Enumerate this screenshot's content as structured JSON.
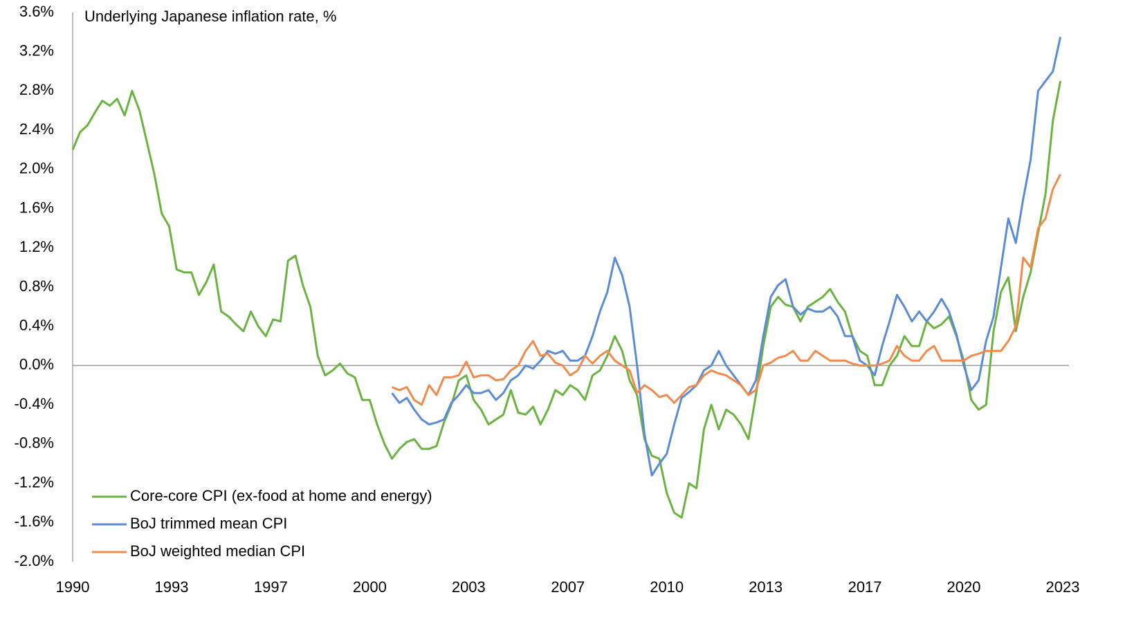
{
  "chart_data": {
    "type": "line",
    "title": "Underlying Japanese inflation rate, %",
    "x": [
      1990,
      1990.25,
      1990.5,
      1990.75,
      1991,
      1991.25,
      1991.5,
      1991.75,
      1992,
      1992.25,
      1992.5,
      1992.75,
      1993,
      1993.25,
      1993.5,
      1993.75,
      1994,
      1994.25,
      1994.5,
      1994.75,
      1995,
      1995.25,
      1995.5,
      1995.75,
      1996,
      1996.25,
      1996.5,
      1996.75,
      1997,
      1997.25,
      1997.5,
      1997.75,
      1998,
      1998.25,
      1998.5,
      1998.75,
      1999,
      1999.25,
      1999.5,
      1999.75,
      2000,
      2000.25,
      2000.5,
      2000.75,
      2001,
      2001.25,
      2001.5,
      2001.75,
      2002,
      2002.25,
      2002.5,
      2002.75,
      2003,
      2003.25,
      2003.5,
      2003.75,
      2004,
      2004.25,
      2004.5,
      2004.75,
      2005,
      2005.25,
      2005.5,
      2005.75,
      2006,
      2006.25,
      2006.5,
      2006.75,
      2007,
      2007.25,
      2007.5,
      2007.75,
      2008,
      2008.25,
      2008.5,
      2008.75,
      2009,
      2009.25,
      2009.5,
      2009.75,
      2010,
      2010.25,
      2010.5,
      2010.75,
      2011,
      2011.25,
      2011.5,
      2011.75,
      2012,
      2012.25,
      2012.5,
      2012.75,
      2013,
      2013.25,
      2013.5,
      2013.75,
      2014,
      2014.25,
      2014.5,
      2014.75,
      2015,
      2015.25,
      2015.5,
      2015.75,
      2016,
      2016.25,
      2016.5,
      2016.75,
      2017,
      2017.25,
      2017.5,
      2017.75,
      2018,
      2018.25,
      2018.5,
      2018.75,
      2019,
      2019.25,
      2019.5,
      2019.75,
      2020,
      2020.25,
      2020.5,
      2020.75,
      2021,
      2021.25,
      2021.5,
      2021.75,
      2022,
      2022.25,
      2022.5,
      2022.75,
      2023,
      2023.25
    ],
    "series": [
      {
        "name": "Core-core CPI (ex-food at home and energy)",
        "color": "#6bb341",
        "values": [
          2.2,
          2.38,
          2.45,
          2.58,
          2.7,
          2.65,
          2.72,
          2.55,
          2.8,
          2.6,
          2.28,
          1.95,
          1.55,
          1.42,
          0.98,
          0.95,
          0.95,
          0.72,
          0.85,
          1.03,
          0.55,
          0.5,
          0.42,
          0.35,
          0.55,
          0.4,
          0.3,
          0.47,
          0.45,
          1.07,
          1.12,
          0.82,
          0.6,
          0.1,
          -0.1,
          -0.05,
          0.02,
          -0.08,
          -0.12,
          -0.35,
          -0.35,
          -0.6,
          -0.8,
          -0.95,
          -0.85,
          -0.78,
          -0.75,
          -0.85,
          -0.85,
          -0.82,
          -0.58,
          -0.4,
          -0.15,
          -0.1,
          -0.35,
          -0.45,
          -0.6,
          -0.55,
          -0.5,
          -0.25,
          -0.48,
          -0.5,
          -0.42,
          -0.6,
          -0.45,
          -0.25,
          -0.3,
          -0.2,
          -0.25,
          -0.35,
          -0.1,
          -0.05,
          0.1,
          0.3,
          0.15,
          -0.15,
          -0.3,
          -0.75,
          -0.92,
          -0.95,
          -1.3,
          -1.5,
          -1.55,
          -1.2,
          -1.25,
          -0.65,
          -0.4,
          -0.65,
          -0.45,
          -0.5,
          -0.6,
          -0.75,
          -0.3,
          0.2,
          0.6,
          0.7,
          0.62,
          0.6,
          0.45,
          0.6,
          0.65,
          0.7,
          0.78,
          0.65,
          0.55,
          0.3,
          0.15,
          0.1,
          -0.2,
          -0.2,
          0.0,
          0.1,
          0.3,
          0.2,
          0.2,
          0.45,
          0.38,
          0.42,
          0.5,
          0.3,
          0.05,
          -0.35,
          -0.45,
          -0.4,
          0.35,
          0.75,
          0.9,
          0.35,
          0.7,
          0.95,
          1.35,
          1.75,
          2.5,
          2.9
        ]
      },
      {
        "name": "BoJ trimmed mean CPI",
        "color": "#5b8bd6",
        "values": [
          null,
          null,
          null,
          null,
          null,
          null,
          null,
          null,
          null,
          null,
          null,
          null,
          null,
          null,
          null,
          null,
          null,
          null,
          null,
          null,
          null,
          null,
          null,
          null,
          null,
          null,
          null,
          null,
          null,
          null,
          null,
          null,
          null,
          null,
          null,
          null,
          null,
          null,
          null,
          null,
          null,
          null,
          null,
          -0.28,
          -0.38,
          -0.33,
          -0.45,
          -0.55,
          -0.6,
          -0.58,
          -0.55,
          -0.38,
          -0.3,
          -0.2,
          -0.28,
          -0.28,
          -0.25,
          -0.35,
          -0.28,
          -0.15,
          -0.1,
          0.0,
          -0.03,
          0.05,
          0.15,
          0.12,
          0.15,
          0.05,
          0.05,
          0.1,
          0.3,
          0.55,
          0.75,
          1.1,
          0.92,
          0.6,
          0.0,
          -0.7,
          -1.12,
          -1.0,
          -0.9,
          -0.6,
          -0.33,
          -0.27,
          -0.2,
          -0.05,
          0.0,
          0.15,
          0.0,
          -0.1,
          -0.2,
          -0.3,
          -0.15,
          0.3,
          0.7,
          0.82,
          0.88,
          0.6,
          0.52,
          0.58,
          0.55,
          0.55,
          0.6,
          0.5,
          0.3,
          0.3,
          0.05,
          0.0,
          -0.1,
          0.2,
          0.45,
          0.72,
          0.6,
          0.45,
          0.55,
          0.45,
          0.55,
          0.68,
          0.55,
          0.32,
          0.0,
          -0.25,
          -0.15,
          0.25,
          0.5,
          1.0,
          1.5,
          1.25,
          1.7,
          2.1,
          2.8,
          2.9,
          3.0,
          3.35
        ]
      },
      {
        "name": "BoJ weighted median CPI",
        "color": "#f4894a",
        "values": [
          null,
          null,
          null,
          null,
          null,
          null,
          null,
          null,
          null,
          null,
          null,
          null,
          null,
          null,
          null,
          null,
          null,
          null,
          null,
          null,
          null,
          null,
          null,
          null,
          null,
          null,
          null,
          null,
          null,
          null,
          null,
          null,
          null,
          null,
          null,
          null,
          null,
          null,
          null,
          null,
          null,
          null,
          null,
          -0.22,
          -0.25,
          -0.22,
          -0.35,
          -0.4,
          -0.2,
          -0.3,
          -0.12,
          -0.12,
          -0.1,
          0.04,
          -0.12,
          -0.1,
          -0.1,
          -0.15,
          -0.14,
          -0.05,
          0.0,
          0.15,
          0.25,
          0.1,
          0.12,
          0.03,
          0.0,
          -0.1,
          -0.05,
          0.1,
          0.02,
          0.1,
          0.15,
          0.05,
          0.0,
          -0.05,
          -0.28,
          -0.2,
          -0.25,
          -0.32,
          -0.3,
          -0.38,
          -0.3,
          -0.22,
          -0.2,
          -0.1,
          -0.05,
          -0.08,
          -0.1,
          -0.15,
          -0.2,
          -0.3,
          -0.25,
          0.0,
          0.03,
          0.08,
          0.1,
          0.15,
          0.05,
          0.05,
          0.15,
          0.1,
          0.05,
          0.05,
          0.05,
          0.02,
          0.0,
          0.0,
          0.0,
          0.02,
          0.05,
          0.2,
          0.1,
          0.05,
          0.05,
          0.15,
          0.2,
          0.05,
          0.05,
          0.05,
          0.05,
          0.1,
          0.12,
          0.15,
          0.15,
          0.15,
          0.25,
          0.4,
          1.1,
          1.0,
          1.4,
          1.5,
          1.8,
          1.95
        ]
      }
    ],
    "xlim": [
      1990,
      2023.33
    ],
    "xticks": [
      1990,
      {
        "value": 1993.33,
        "label": "1993"
      },
      {
        "value": 1996.67,
        "label": "1997"
      },
      2000,
      {
        "value": 2003.33,
        "label": "2003"
      },
      {
        "value": 2006.67,
        "label": "2007"
      },
      2010,
      {
        "value": 2013.33,
        "label": "2013"
      },
      {
        "value": 2016.67,
        "label": "2017"
      },
      2020,
      {
        "value": 2023.33,
        "label": "2023"
      }
    ],
    "ylim": [
      -2.0,
      3.6
    ],
    "yticks": [
      {
        "value": 3.6,
        "label": "3.6%"
      },
      {
        "value": 3.2,
        "label": "3.2%"
      },
      {
        "value": 2.8,
        "label": "2.8%"
      },
      {
        "value": 2.4,
        "label": "2.4%"
      },
      {
        "value": 2.0,
        "label": "2.0%"
      },
      {
        "value": 1.6,
        "label": "1.6%"
      },
      {
        "value": 1.2,
        "label": "1.2%"
      },
      {
        "value": 0.8,
        "label": "0.8%"
      },
      {
        "value": 0.4,
        "label": "0.4%"
      },
      {
        "value": 0,
        "label": "0.0%"
      },
      {
        "value": -0.4,
        "label": "-0.4%"
      },
      {
        "value": -0.8,
        "label": "-0.8%"
      },
      {
        "value": -1.2,
        "label": "-1.2%"
      },
      {
        "value": -1.6,
        "label": "-1.6%"
      },
      {
        "value": -2.0,
        "label": "-2.0%"
      }
    ],
    "grid": false,
    "legend": "lower left"
  }
}
